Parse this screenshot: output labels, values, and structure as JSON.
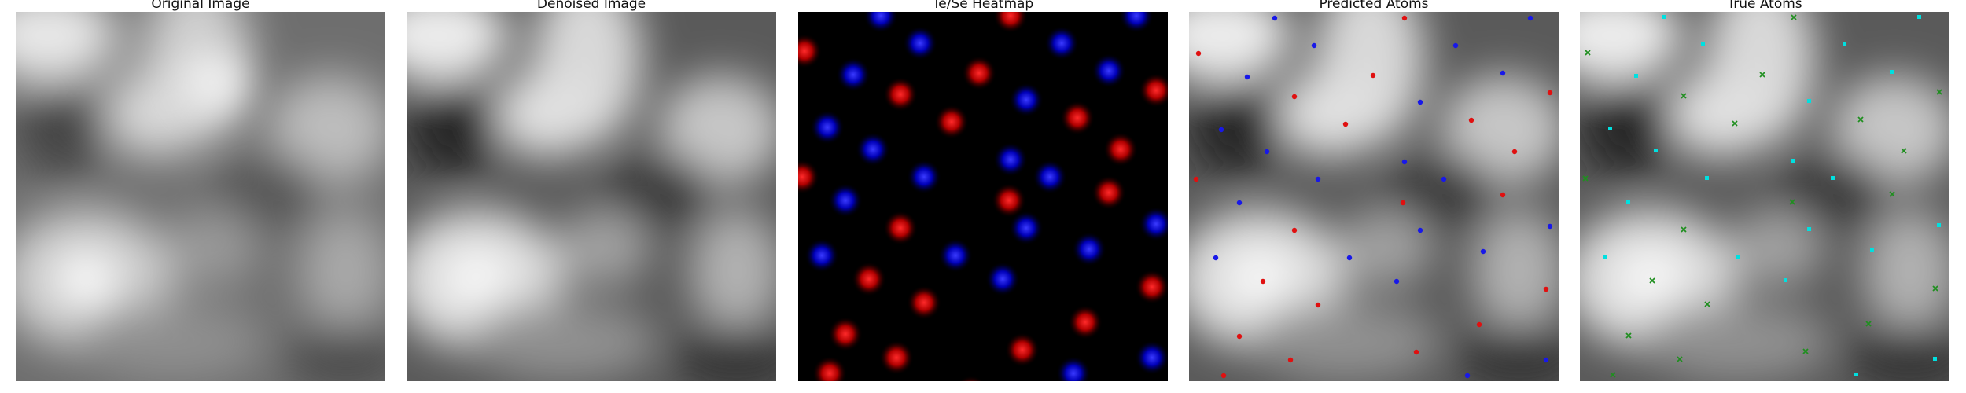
{
  "panels": [
    {
      "title": "Original Image"
    },
    {
      "title": "Denoised Image"
    },
    {
      "title": "Te/Se Heatmap"
    },
    {
      "title": "Predicted Atoms"
    },
    {
      "title": "True Atoms"
    }
  ],
  "colors": {
    "te": "#e01010",
    "se": "#1818e8",
    "true_te": "#00e0e0",
    "true_se": "#1f8f1f",
    "pred_te": "#e01010",
    "pred_se": "#1818e8"
  }
}
